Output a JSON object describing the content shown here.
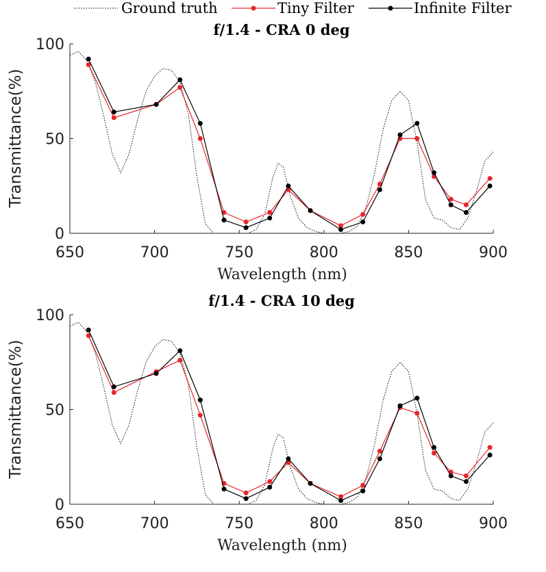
{
  "legend": {
    "items": [
      {
        "label": "Ground truth",
        "color": "#000000",
        "style": "dotted"
      },
      {
        "label": "Tiny Filter",
        "color": "#e8242b",
        "style": "solid-marker"
      },
      {
        "label": "Infinite Filter",
        "color": "#000000",
        "style": "solid-marker"
      }
    ]
  },
  "chart_data": [
    {
      "type": "line",
      "title": "f/1.4 - CRA 0 deg",
      "xlabel": "Wavelength (nm)",
      "ylabel": "Transmittance(%)",
      "xlim": [
        650,
        900
      ],
      "ylim": [
        0,
        100
      ],
      "xticks": [
        650,
        700,
        750,
        800,
        850,
        900
      ],
      "yticks": [
        0,
        50,
        100
      ],
      "grid": false,
      "legend_position": "top",
      "series": [
        {
          "name": "Ground truth",
          "color": "#000000",
          "style": "dotted",
          "x": [
            650,
            655,
            660,
            665,
            670,
            675,
            680,
            685,
            690,
            695,
            700,
            705,
            710,
            715,
            720,
            725,
            730,
            735,
            740,
            745,
            750,
            755,
            760,
            765,
            770,
            773,
            776,
            780,
            785,
            790,
            795,
            800,
            805,
            810,
            815,
            820,
            825,
            830,
            835,
            840,
            845,
            850,
            855,
            860,
            865,
            870,
            875,
            880,
            885,
            890,
            895,
            900
          ],
          "y": [
            94,
            96,
            91,
            80,
            62,
            42,
            32,
            42,
            60,
            75,
            83,
            87,
            86,
            80,
            63,
            30,
            5,
            0,
            0,
            0,
            0,
            0,
            2,
            10,
            30,
            37,
            35,
            20,
            8,
            3,
            1,
            0,
            0,
            0,
            1,
            4,
            14,
            32,
            55,
            70,
            75,
            70,
            48,
            18,
            8,
            7,
            3,
            2,
            8,
            22,
            38,
            43
          ]
        },
        {
          "name": "Tiny Filter",
          "color": "#e8242b",
          "x": [
            661,
            676,
            701,
            715,
            727,
            741,
            754,
            768,
            779,
            792,
            810,
            823,
            833,
            845,
            855,
            865,
            875,
            884,
            898
          ],
          "y": [
            89,
            61,
            68,
            77,
            50,
            11,
            6,
            11,
            23,
            12,
            4,
            10,
            26,
            50,
            50,
            30,
            18,
            15,
            29
          ]
        },
        {
          "name": "Infinite Filter",
          "color": "#000000",
          "x": [
            661,
            676,
            701,
            715,
            727,
            741,
            754,
            768,
            779,
            792,
            810,
            823,
            833,
            845,
            855,
            865,
            875,
            884,
            898
          ],
          "y": [
            92,
            64,
            68,
            81,
            58,
            7,
            3,
            8,
            25,
            12,
            2,
            6,
            23,
            52,
            58,
            32,
            15,
            11,
            25
          ]
        }
      ]
    },
    {
      "type": "line",
      "title": "f/1.4 - CRA 10 deg",
      "xlabel": "Wavelength (nm)",
      "ylabel": "Transmittance(%)",
      "xlim": [
        650,
        900
      ],
      "ylim": [
        0,
        100
      ],
      "xticks": [
        650,
        700,
        750,
        800,
        850,
        900
      ],
      "yticks": [
        0,
        50,
        100
      ],
      "grid": false,
      "series": [
        {
          "name": "Ground truth",
          "color": "#000000",
          "style": "dotted",
          "x": [
            650,
            655,
            660,
            665,
            670,
            675,
            680,
            685,
            690,
            695,
            700,
            705,
            710,
            715,
            720,
            725,
            730,
            735,
            740,
            745,
            750,
            755,
            760,
            765,
            770,
            773,
            776,
            780,
            785,
            790,
            795,
            800,
            805,
            810,
            815,
            820,
            825,
            830,
            835,
            840,
            845,
            850,
            855,
            860,
            865,
            870,
            875,
            880,
            885,
            890,
            895,
            900
          ],
          "y": [
            94,
            96,
            91,
            80,
            62,
            42,
            32,
            42,
            60,
            75,
            83,
            87,
            86,
            80,
            63,
            30,
            5,
            0,
            0,
            0,
            0,
            0,
            2,
            10,
            30,
            37,
            35,
            20,
            8,
            3,
            1,
            0,
            0,
            0,
            1,
            4,
            14,
            32,
            55,
            70,
            75,
            70,
            48,
            18,
            8,
            7,
            3,
            2,
            8,
            22,
            38,
            43
          ]
        },
        {
          "name": "Tiny Filter",
          "color": "#e8242b",
          "x": [
            661,
            676,
            701,
            715,
            727,
            741,
            754,
            768,
            779,
            792,
            810,
            823,
            833,
            845,
            855,
            865,
            875,
            884,
            898
          ],
          "y": [
            89,
            59,
            70,
            76,
            47,
            11,
            6,
            12,
            22,
            11,
            4,
            10,
            28,
            51,
            48,
            27,
            17,
            15,
            30
          ]
        },
        {
          "name": "Infinite Filter",
          "color": "#000000",
          "x": [
            661,
            676,
            701,
            715,
            727,
            741,
            754,
            768,
            779,
            792,
            810,
            823,
            833,
            845,
            855,
            865,
            875,
            884,
            898
          ],
          "y": [
            92,
            62,
            69,
            81,
            55,
            8,
            3,
            9,
            24,
            11,
            2,
            7,
            24,
            52,
            56,
            30,
            15,
            12,
            26
          ]
        }
      ]
    }
  ]
}
